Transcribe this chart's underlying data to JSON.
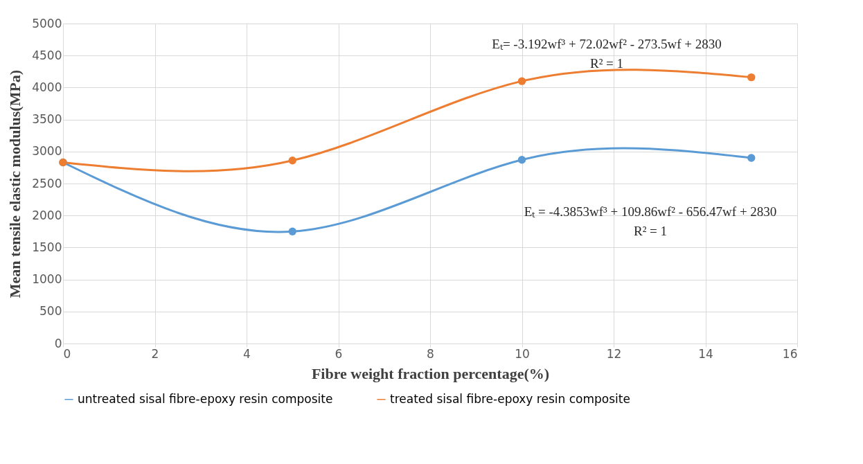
{
  "chart_data": {
    "type": "line",
    "xlabel": "Fibre weight fraction percentage(%)",
    "ylabel": "Mean tensile elastic  modulus(MPa)",
    "x": [
      0,
      5,
      10,
      15
    ],
    "series": [
      {
        "name": "untreated sisal fibre-epoxy resin composite",
        "color": "#5b9bd5",
        "values": [
          2830,
          1750,
          2870,
          2900
        ]
      },
      {
        "name": "treated  sisal fibre-epoxy resin composite",
        "color": "#ed7d31",
        "values": [
          2830,
          2860,
          4100,
          4160
        ]
      }
    ],
    "xlim": [
      0,
      16
    ],
    "xticks": [
      0,
      2,
      4,
      6,
      8,
      10,
      12,
      14,
      16
    ],
    "ylim": [
      0,
      5000
    ],
    "yticks": [
      0,
      500,
      1000,
      1500,
      2000,
      2500,
      3000,
      3500,
      4000,
      4500,
      5000
    ],
    "grid": true,
    "legend": "bottom",
    "marker": "circle",
    "line_style": "solid",
    "annotations": [
      "Eₜ= -3.192wf³ + 72.02wf² - 273.5wf + 2830",
      "R² = 1",
      "Eₜ = -4.3853wf³ + 109.86wf² - 656.47wf + 2830",
      "R² = 1"
    ]
  }
}
